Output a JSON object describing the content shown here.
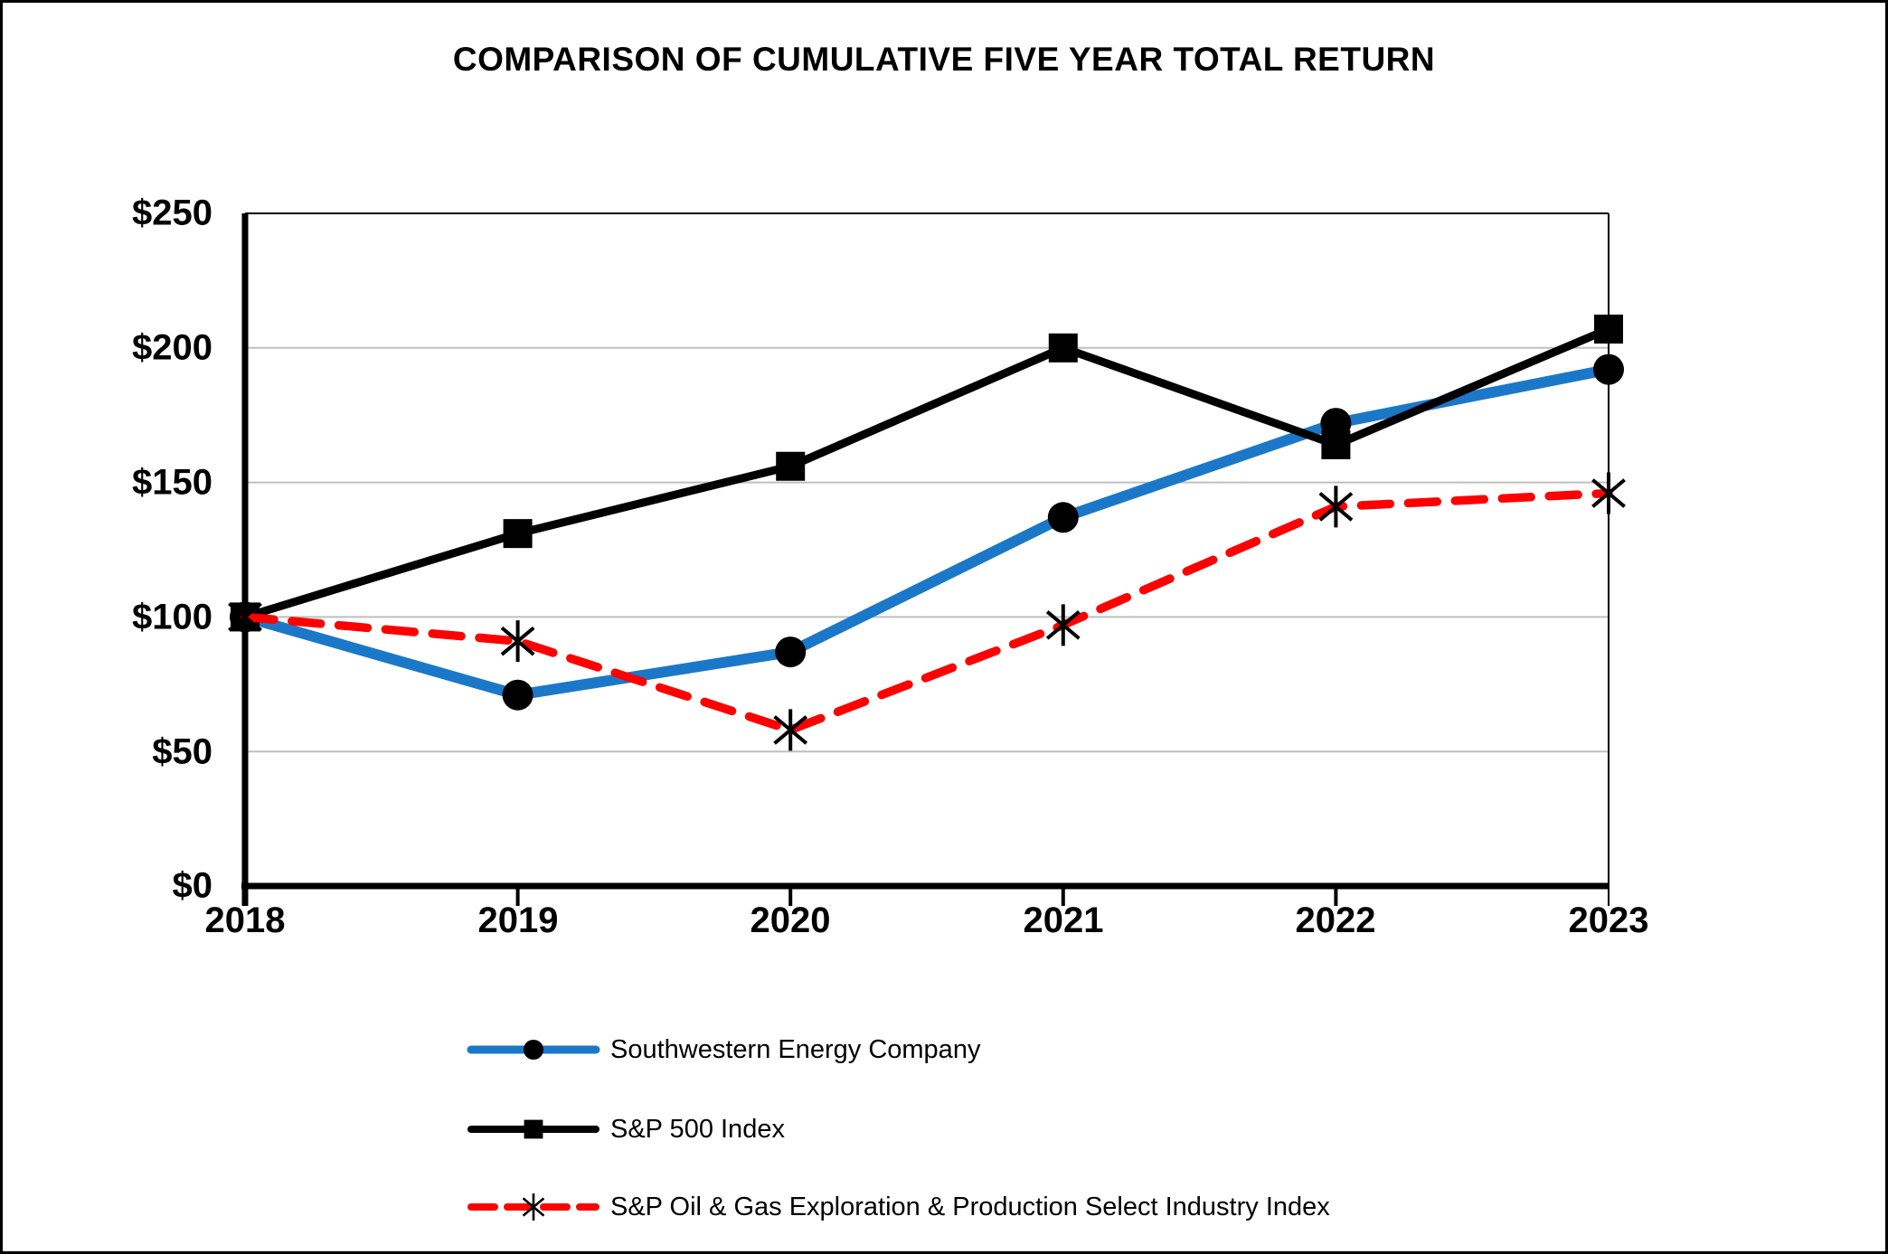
{
  "chart_data": {
    "type": "line",
    "title": "COMPARISON OF CUMULATIVE FIVE YEAR TOTAL RETURN",
    "categories": [
      "2018",
      "2019",
      "2020",
      "2021",
      "2022",
      "2023"
    ],
    "xlabel": "",
    "ylabel": "",
    "ylim": [
      0,
      250
    ],
    "yticks": [
      0,
      50,
      100,
      150,
      200,
      250
    ],
    "ytick_labels": [
      "$0",
      "$50",
      "$100",
      "$150",
      "$200",
      "$250"
    ],
    "grid": "horizontal",
    "gridline_color": "#BFBFBF",
    "legend_position": "bottom-left",
    "series": [
      {
        "name": "Southwestern Energy Company",
        "color": "#1B78C9",
        "marker": "circle",
        "marker_color": "#000000",
        "line_style": "solid",
        "values": [
          100,
          71,
          87,
          137,
          172,
          192
        ]
      },
      {
        "name": "S&P 500 Index",
        "color": "#000000",
        "marker": "square",
        "marker_color": "#000000",
        "line_style": "solid",
        "values": [
          100,
          131,
          156,
          200,
          164,
          207
        ]
      },
      {
        "name": "S&P Oil & Gas Exploration & Production Select Industry Index",
        "color": "#FF0000",
        "marker": "asterisk",
        "marker_color": "#000000",
        "line_style": "dashed",
        "values": [
          100,
          91,
          58,
          97,
          141,
          146
        ]
      }
    ]
  }
}
